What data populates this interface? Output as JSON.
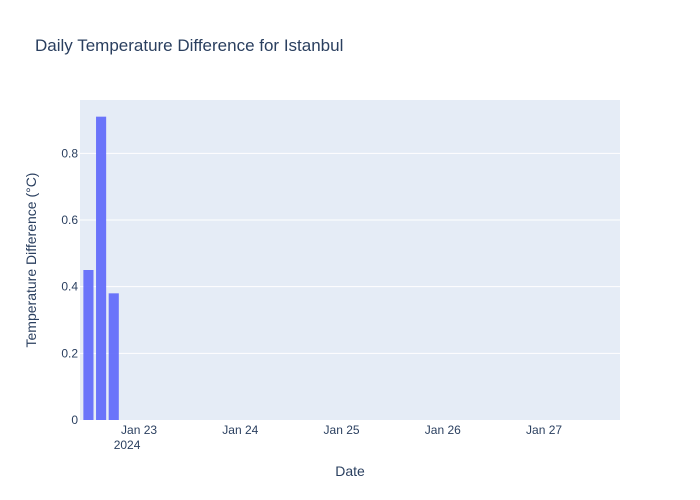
{
  "chart_data": {
    "type": "bar",
    "title": "Daily Temperature Difference for Istanbul",
    "xlabel": "Date",
    "ylabel": "Temperature Difference (°C)",
    "x_tick_labels": [
      {
        "date": "2024-01-23",
        "label": "Jan 23",
        "sublabel": "2024"
      },
      {
        "date": "2024-01-24",
        "label": "Jan 24",
        "sublabel": ""
      },
      {
        "date": "2024-01-25",
        "label": "Jan 25",
        "sublabel": ""
      },
      {
        "date": "2024-01-26",
        "label": "Jan 26",
        "sublabel": ""
      },
      {
        "date": "2024-01-27",
        "label": "Jan 27",
        "sublabel": ""
      }
    ],
    "y_ticks": [
      0,
      0.2,
      0.4,
      0.6,
      0.8
    ],
    "ylim": [
      0,
      0.96
    ],
    "xlim": [
      "2024-01-22T10:00:00",
      "2024-01-27T18:00:00"
    ],
    "bar_color": "#636efa",
    "plot_bg_color": "#e5ecf6",
    "grid": true,
    "points": [
      {
        "x": "2024-01-22T12:00:00",
        "y": 0.45
      },
      {
        "x": "2024-01-22T15:00:00",
        "y": 0.91
      },
      {
        "x": "2024-01-22T18:00:00",
        "y": 0.38
      }
    ]
  }
}
